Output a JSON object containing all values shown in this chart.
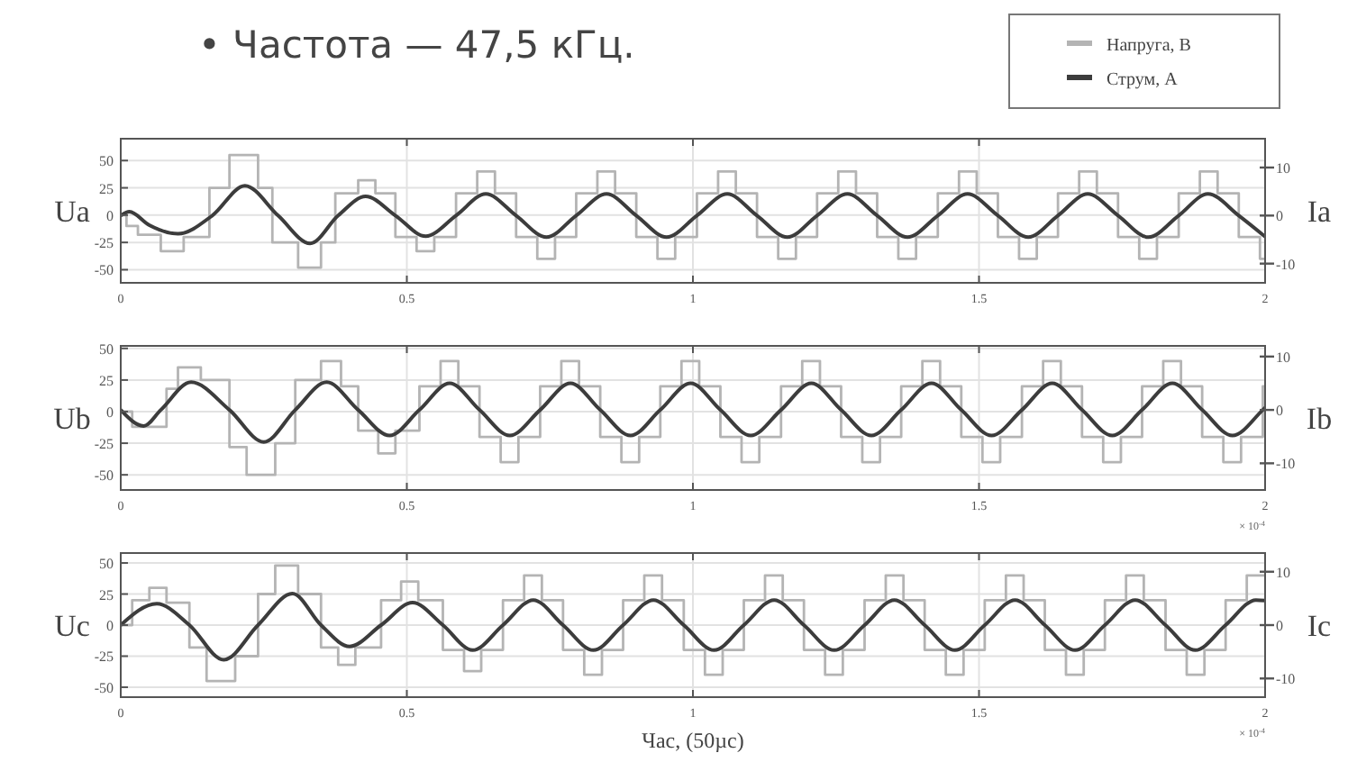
{
  "chart_data": [
    {
      "type": "line",
      "title": "• Частота — 47,5 кГц.",
      "ylabel": "Ua",
      "y2label": "Ia",
      "xlim": [
        0,
        2
      ],
      "xticks": [
        0,
        0.5,
        1,
        1.5,
        2
      ],
      "ylim": [
        -62,
        70
      ],
      "yticks": [
        50,
        25,
        0,
        -25,
        -50
      ],
      "y2lim": [
        -14,
        16
      ],
      "y2ticks": [
        10,
        0,
        -10
      ],
      "grid": true,
      "legend": "top right",
      "series": [
        {
          "name": "Напруга, В",
          "type": "step",
          "color": "#b4b4b4",
          "x": [
            0,
            0.01,
            0.03,
            0.07,
            0.11,
            0.155,
            0.19,
            0.24,
            0.265,
            0.31,
            0.35,
            0.375,
            0.415,
            0.445,
            0.48,
            0.517,
            0.548,
            0.586,
            0.623,
            0.654,
            0.691,
            0.728,
            0.759,
            0.796,
            0.833,
            0.864,
            0.901,
            0.938,
            0.969,
            1.007,
            1.044,
            1.075,
            1.112,
            1.149,
            1.18,
            1.217,
            1.254,
            1.285,
            1.322,
            1.359,
            1.39,
            1.428,
            1.465,
            1.496,
            1.533,
            1.57,
            1.601,
            1.638,
            1.675,
            1.706,
            1.743,
            1.78,
            1.811,
            1.849,
            1.886,
            1.917,
            1.954,
            1.991,
            2.0
          ],
          "values": [
            0,
            -10,
            -18,
            -33,
            -20,
            25,
            55,
            25,
            -25,
            -48,
            -25,
            20,
            32,
            20,
            -20,
            -33,
            -20,
            20,
            40,
            20,
            -20,
            -40,
            -20,
            20,
            40,
            20,
            -20,
            -40,
            -20,
            20,
            40,
            20,
            -20,
            -40,
            -20,
            20,
            40,
            20,
            -20,
            -40,
            -20,
            20,
            40,
            20,
            -20,
            -40,
            -20,
            20,
            40,
            20,
            -20,
            -40,
            -20,
            20,
            40,
            20,
            -20,
            -40,
            -40
          ]
        },
        {
          "name": "Струм, А",
          "type": "line",
          "axis": "y2",
          "color": "#3c3c3c",
          "x": [
            0,
            0.015,
            0.05,
            0.1,
            0.16,
            0.217,
            0.275,
            0.331,
            0.38,
            0.428,
            0.48,
            0.533,
            0.586,
            0.638,
            0.691,
            0.744,
            0.796,
            0.849,
            0.901,
            0.954,
            1.007,
            1.06,
            1.112,
            1.165,
            1.217,
            1.27,
            1.322,
            1.375,
            1.428,
            1.48,
            1.533,
            1.586,
            1.638,
            1.69,
            1.743,
            1.796,
            1.849,
            1.9,
            1.954,
            2.0
          ],
          "values": [
            0,
            0.8,
            -2,
            -3.8,
            0,
            6.2,
            0,
            -5.8,
            0,
            4,
            0,
            -4.3,
            0,
            4.5,
            0,
            -4.5,
            0,
            4.5,
            0,
            -4.5,
            0,
            4.5,
            0,
            -4.5,
            0,
            4.5,
            0,
            -4.5,
            0,
            4.5,
            0,
            -4.5,
            0,
            4.5,
            0,
            -4.5,
            0,
            4.5,
            0,
            -4.4
          ]
        }
      ]
    },
    {
      "type": "line",
      "ylabel": "Ub",
      "y2label": "Ib",
      "xlim": [
        0,
        2
      ],
      "xticks": [
        0,
        0.5,
        1,
        1.5,
        2
      ],
      "ylim": [
        -62,
        52
      ],
      "yticks": [
        50,
        25,
        0,
        -25,
        -50
      ],
      "y2lim": [
        -15,
        12
      ],
      "y2ticks": [
        10,
        0,
        -10
      ],
      "grid": true,
      "annotations": [
        "× 10$^{-4}$"
      ],
      "series": [
        {
          "type": "step",
          "color": "#b4b4b4",
          "x": [
            0,
            0.02,
            0.08,
            0.1,
            0.14,
            0.19,
            0.22,
            0.27,
            0.305,
            0.35,
            0.385,
            0.415,
            0.45,
            0.48,
            0.522,
            0.559,
            0.59,
            0.627,
            0.664,
            0.695,
            0.733,
            0.77,
            0.801,
            0.838,
            0.875,
            0.906,
            0.943,
            0.98,
            1.011,
            1.048,
            1.085,
            1.116,
            1.154,
            1.191,
            1.222,
            1.259,
            1.296,
            1.327,
            1.364,
            1.401,
            1.432,
            1.469,
            1.506,
            1.537,
            1.575,
            1.612,
            1.643,
            1.68,
            1.717,
            1.748,
            1.785,
            1.822,
            1.853,
            1.89,
            1.927,
            1.958,
            1.996,
            2.0
          ],
          "values": [
            0,
            -12,
            18,
            35,
            25,
            -28,
            -50,
            -25,
            25,
            40,
            20,
            -15,
            -33,
            -15,
            20,
            40,
            20,
            -20,
            -40,
            -20,
            20,
            40,
            20,
            -20,
            -40,
            -20,
            20,
            40,
            20,
            -20,
            -40,
            -20,
            20,
            40,
            20,
            -20,
            -40,
            -20,
            20,
            40,
            20,
            -20,
            -40,
            -20,
            20,
            40,
            20,
            -20,
            -40,
            -20,
            20,
            40,
            20,
            -20,
            -40,
            -20,
            20,
            20
          ]
        },
        {
          "type": "line",
          "axis": "y2",
          "color": "#3c3c3c",
          "x": [
            0,
            0.04,
            0.07,
            0.123,
            0.19,
            0.25,
            0.305,
            0.36,
            0.415,
            0.47,
            0.522,
            0.575,
            0.627,
            0.68,
            0.733,
            0.786,
            0.838,
            0.891,
            0.943,
            0.996,
            1.048,
            1.101,
            1.154,
            1.207,
            1.259,
            1.312,
            1.364,
            1.417,
            1.469,
            1.522,
            1.575,
            1.628,
            1.68,
            1.733,
            1.785,
            1.838,
            1.89,
            1.943,
            1.996,
            2.0
          ],
          "values": [
            0,
            -3,
            0,
            5.2,
            0,
            -6,
            0,
            5.2,
            0,
            -4.8,
            0,
            5,
            0,
            -4.8,
            0,
            5,
            0,
            -4.8,
            0,
            5,
            0,
            -4.8,
            0,
            5,
            0,
            -4.8,
            0,
            5,
            0,
            -4.8,
            0,
            5,
            0,
            -4.8,
            0,
            5,
            0,
            -4.8,
            0,
            0.4
          ]
        }
      ]
    },
    {
      "type": "line",
      "ylabel": "Uc",
      "y2label": "Ic",
      "xlabel": "Час, (50µс)",
      "xlim": [
        0,
        2
      ],
      "xticks": [
        0,
        0.5,
        1,
        1.5,
        2
      ],
      "ylim": [
        -58,
        58
      ],
      "yticks": [
        50,
        25,
        0,
        -25,
        -50
      ],
      "y2lim": [
        -13.5,
        13.5
      ],
      "y2ticks": [
        10,
        0,
        -10
      ],
      "grid": true,
      "annotations": [
        "× 10$^{-4}$"
      ],
      "series": [
        {
          "type": "step",
          "color": "#b4b4b4",
          "x": [
            0,
            0.02,
            0.05,
            0.08,
            0.12,
            0.15,
            0.2,
            0.24,
            0.27,
            0.31,
            0.35,
            0.38,
            0.41,
            0.455,
            0.49,
            0.52,
            0.563,
            0.6,
            0.63,
            0.668,
            0.705,
            0.736,
            0.773,
            0.81,
            0.841,
            0.878,
            0.915,
            0.946,
            0.984,
            1.021,
            1.052,
            1.089,
            1.126,
            1.157,
            1.194,
            1.231,
            1.262,
            1.3,
            1.337,
            1.368,
            1.405,
            1.442,
            1.473,
            1.51,
            1.547,
            1.578,
            1.615,
            1.652,
            1.683,
            1.72,
            1.757,
            1.788,
            1.826,
            1.863,
            1.894,
            1.931,
            1.968,
            2.0
          ],
          "values": [
            0,
            20,
            30,
            18,
            -18,
            -45,
            -25,
            25,
            48,
            25,
            -18,
            -32,
            -18,
            20,
            35,
            20,
            -20,
            -37,
            -20,
            20,
            40,
            20,
            -20,
            -40,
            -20,
            20,
            40,
            20,
            -20,
            -40,
            -20,
            20,
            40,
            20,
            -20,
            -40,
            -20,
            20,
            40,
            20,
            -20,
            -40,
            -20,
            20,
            40,
            20,
            -20,
            -40,
            -20,
            20,
            40,
            20,
            -20,
            -40,
            -20,
            20,
            40,
            40
          ]
        },
        {
          "type": "line",
          "axis": "y2",
          "color": "#3c3c3c",
          "x": [
            0,
            0.063,
            0.12,
            0.18,
            0.24,
            0.3,
            0.35,
            0.4,
            0.455,
            0.51,
            0.563,
            0.615,
            0.668,
            0.721,
            0.773,
            0.826,
            0.878,
            0.931,
            0.984,
            1.037,
            1.089,
            1.142,
            1.194,
            1.247,
            1.3,
            1.352,
            1.405,
            1.458,
            1.51,
            1.563,
            1.615,
            1.668,
            1.72,
            1.773,
            1.826,
            1.878,
            1.931,
            1.984,
            2.0
          ],
          "values": [
            0,
            4,
            0,
            -6.5,
            0,
            5.9,
            0,
            -4,
            0,
            4.2,
            0,
            -4.7,
            0,
            4.7,
            0,
            -4.7,
            0,
            4.7,
            0,
            -4.7,
            0,
            4.7,
            0,
            -4.7,
            0,
            4.7,
            0,
            -4.7,
            0,
            4.7,
            0,
            -4.7,
            0,
            4.7,
            0,
            -4.7,
            0,
            4.7,
            4.6
          ]
        }
      ]
    }
  ]
}
